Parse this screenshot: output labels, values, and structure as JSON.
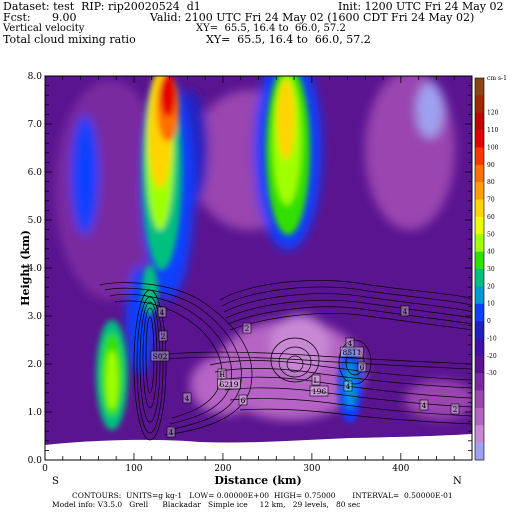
{
  "header": {
    "dataset": "Dataset: test  RIP: rip20020524  d1",
    "init": "Init: 1200 UTC Fri 24 May 02",
    "fcst_label": "Fcst:",
    "fcst_value": "9.00",
    "valid": "Valid: 2100 UTC Fri 24 May 02 (1600 CDT Fri 24 May 02)",
    "field1": "Vertical velocity",
    "xy1": "XY=  65.5, 16.4 to  66.0, 57.2",
    "field2": "Total cloud mixing ratio",
    "xy2": "XY=  65.5, 16.4 to  66.0, 57.2"
  },
  "footer": {
    "contours": "CONTOURS:  UNITS=g kg-1   LOW= 0.00000E+00  HIGH= 0.75000       INTERVAL=  0.50000E-01",
    "model": "Model info: V3.5.0   Grell      Blackadar   Simple ice     12 km,   29 levels,   80 sec"
  },
  "chart_data": {
    "type": "heatmap",
    "xlabel": "Distance (km)",
    "ylabel": "Height (km)",
    "xlim": [
      0,
      480
    ],
    "ylim": [
      0,
      8
    ],
    "x_ticks": [
      "0",
      "100",
      "200",
      "300",
      "400"
    ],
    "y_ticks": [
      "0.0",
      "1.0",
      "2.0",
      "3.0",
      "4.0",
      "5.0",
      "6.0",
      "7.0",
      "8.0"
    ],
    "x_end_labels": {
      "left": "S",
      "right": "N"
    },
    "colorbar": {
      "unit": "cm s-1",
      "labels": [
        "120",
        "110",
        "100",
        "90",
        "80",
        "70",
        "60",
        "50",
        "40",
        "30",
        "20",
        "10",
        "0",
        "-10",
        "-20",
        "-30"
      ],
      "colors": [
        "#8b4513",
        "#9c2a00",
        "#c40000",
        "#e60000",
        "#ff3300",
        "#ff7000",
        "#ffa000",
        "#ffd400",
        "#eaff00",
        "#a0ff00",
        "#30e000",
        "#00c080",
        "#0098d0",
        "#1040ff",
        "#2020c0",
        "#4010a0",
        "#5a1490",
        "#7a2aa0",
        "#9a45b0",
        "#b563c4",
        "#c888d4",
        "#a0a0f0"
      ]
    },
    "contour_labels": [
      "4",
      "2",
      "S02",
      "4",
      "2",
      "H",
      "6219",
      "6",
      "4",
      "L",
      "196",
      "4",
      "4",
      "8511",
      "6",
      "4",
      "4",
      "2"
    ]
  }
}
